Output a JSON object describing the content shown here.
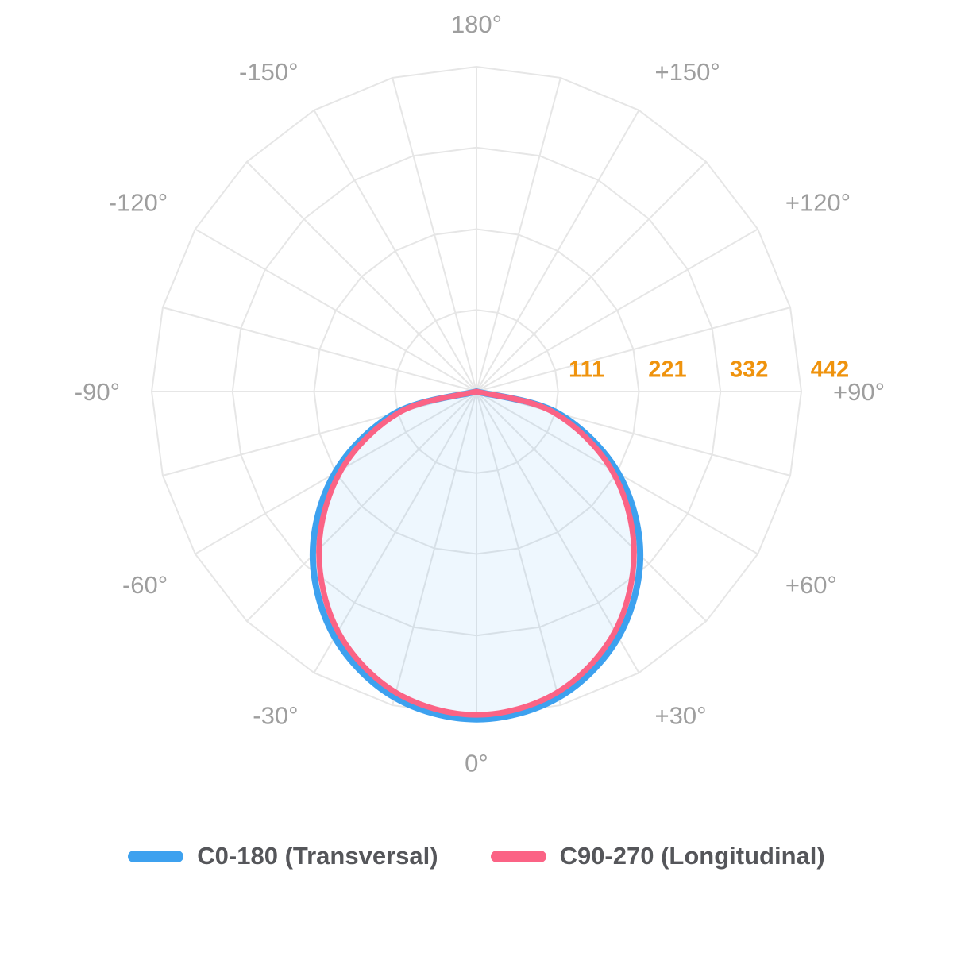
{
  "chart_data": {
    "type": "line",
    "subtype": "polar-photometric",
    "title": "",
    "background_color": "#ffffff",
    "orientation": "0 deg at bottom, positive angles to the right, 180 deg at top",
    "angle_axis": {
      "unit": "deg",
      "grid_spoke_step_deg": 15,
      "label_step_deg": 30,
      "label_color": "#9e9e9e",
      "labels": [
        {
          "deg": 0,
          "label": "0°"
        },
        {
          "deg": 30,
          "label": "+30°"
        },
        {
          "deg": 60,
          "label": "+60°"
        },
        {
          "deg": 90,
          "label": "+90°"
        },
        {
          "deg": 120,
          "label": "+120°"
        },
        {
          "deg": 150,
          "label": "+150°"
        },
        {
          "deg": 180,
          "label": "180°"
        },
        {
          "deg": -150,
          "label": "-150°"
        },
        {
          "deg": -120,
          "label": "-120°"
        },
        {
          "deg": -90,
          "label": "-90°"
        },
        {
          "deg": -60,
          "label": "-60°"
        },
        {
          "deg": -30,
          "label": "-30°"
        }
      ]
    },
    "radial_axis": {
      "ticks": [
        111,
        221,
        332,
        442
      ],
      "max": 442,
      "tick_color": "#ef930d",
      "tick_side": "right of center along +90° axis"
    },
    "grid": {
      "color": "#e6e6e6",
      "line_width": 2,
      "ring_shape": "polygon",
      "rings": 4,
      "spokes": 24
    },
    "angles_deg": [
      -90,
      -75,
      -60,
      -45,
      -30,
      -15,
      0,
      15,
      30,
      45,
      60,
      75,
      90
    ],
    "series": [
      {
        "name": "C0-180 (Transversal)",
        "color": "#3da1ef",
        "fill": "rgba(61,161,239,0.09)",
        "line_width": 8,
        "values": [
          0,
          115,
          223,
          315,
          386,
          431,
          446,
          431,
          386,
          315,
          223,
          115,
          0
        ]
      },
      {
        "name": "C90-270 (Longitudinal)",
        "color": "#fb6385",
        "fill": "none",
        "line_width": 7,
        "values": [
          0,
          108,
          212,
          303,
          377,
          424,
          440,
          424,
          377,
          303,
          212,
          108,
          0
        ]
      }
    ],
    "legend": {
      "position": "bottom",
      "text_color": "#55565a",
      "items": [
        "C0-180 (Transversal)",
        "C90-270 (Longitudinal)"
      ]
    }
  }
}
